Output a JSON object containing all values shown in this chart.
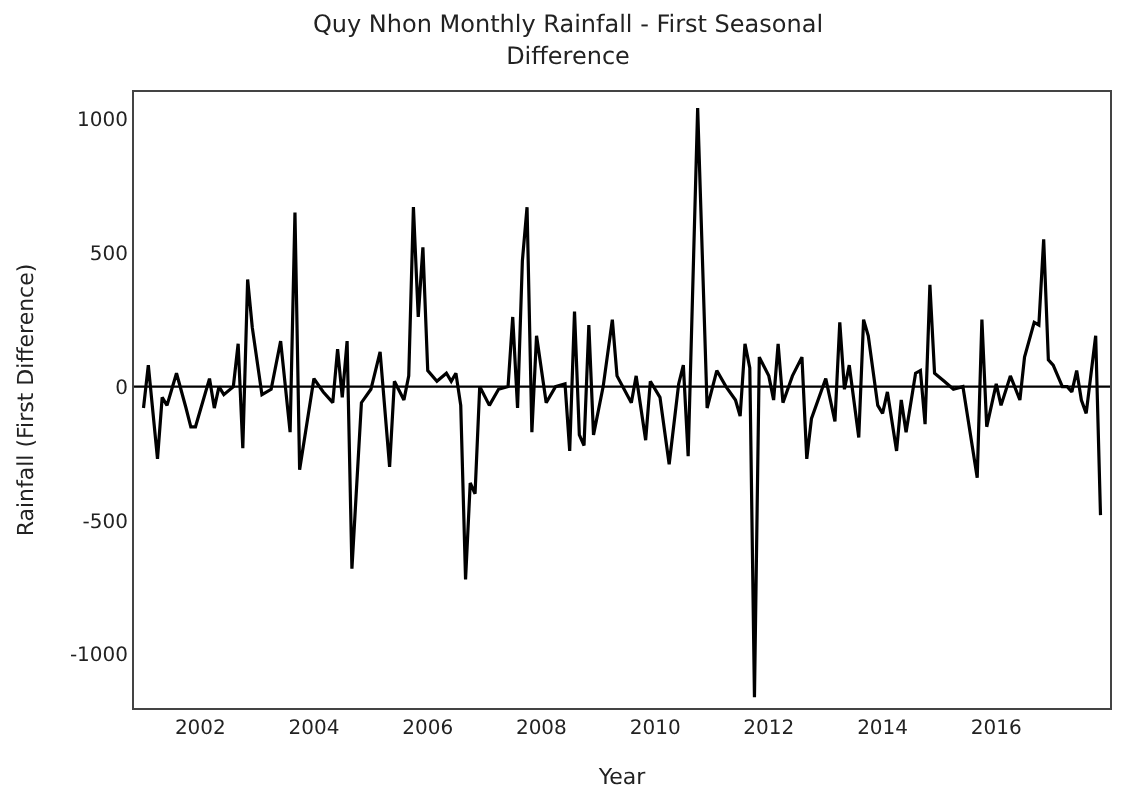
{
  "chart_data": {
    "type": "line",
    "title": "Quy Nhon Monthly Rainfall - First Seasonal Difference",
    "xlabel": "Year",
    "ylabel": "Rainfall (First Difference)",
    "x": [
      "2001-01",
      "2001-02",
      "2001-04",
      "2001-05",
      "2001-06",
      "2001-08",
      "2001-10",
      "2001-11",
      "2001-12",
      "2002-03",
      "2002-04",
      "2002-05",
      "2002-06",
      "2002-08",
      "2002-09",
      "2002-10",
      "2002-11",
      "2002-12",
      "2003-02",
      "2003-04",
      "2003-06",
      "2003-08",
      "2003-09",
      "2003-10",
      "2004-01",
      "2004-03",
      "2004-05",
      "2004-06",
      "2004-07",
      "2004-08",
      "2004-09",
      "2004-11",
      "2005-01",
      "2005-03",
      "2005-05",
      "2005-06",
      "2005-08",
      "2005-09",
      "2005-10",
      "2005-11",
      "2005-12",
      "2006-01",
      "2006-03",
      "2006-05",
      "2006-06",
      "2006-07",
      "2006-08",
      "2006-09",
      "2006-10",
      "2006-11",
      "2006-12",
      "2007-02",
      "2007-04",
      "2007-06",
      "2007-07",
      "2007-08",
      "2007-09",
      "2007-10",
      "2007-11",
      "2007-12",
      "2008-02",
      "2008-04",
      "2008-06",
      "2008-07",
      "2008-08",
      "2008-09",
      "2008-10",
      "2008-11",
      "2008-12",
      "2009-02",
      "2009-04",
      "2009-05",
      "2009-08",
      "2009-09",
      "2009-11",
      "2009-12",
      "2010-02",
      "2010-04",
      "2010-06",
      "2010-07",
      "2010-08",
      "2010-10",
      "2010-12",
      "2011-02",
      "2011-04",
      "2011-06",
      "2011-07",
      "2011-08",
      "2011-09",
      "2011-10",
      "2011-11",
      "2012-01",
      "2012-02",
      "2012-03",
      "2012-04",
      "2012-06",
      "2012-08",
      "2012-09",
      "2012-10",
      "2013-01",
      "2013-03",
      "2013-04",
      "2013-05",
      "2013-06",
      "2013-08",
      "2013-09",
      "2013-10",
      "2013-12",
      "2014-01",
      "2014-02",
      "2014-04",
      "2014-05",
      "2014-06",
      "2014-08",
      "2014-09",
      "2014-10",
      "2014-11",
      "2014-12",
      "2015-02",
      "2015-04",
      "2015-06",
      "2015-09",
      "2015-10",
      "2015-11",
      "2016-01",
      "2016-02",
      "2016-04",
      "2016-06",
      "2016-07",
      "2016-09",
      "2016-10",
      "2016-11",
      "2016-12",
      "2017-01",
      "2017-03",
      "2017-04",
      "2017-05",
      "2017-06",
      "2017-07",
      "2017-08",
      "2017-10",
      "2017-11"
    ],
    "series": [
      {
        "color": "#000000",
        "values": [
          -80,
          80,
          -270,
          -40,
          -70,
          50,
          -80,
          -150,
          -150,
          30,
          -80,
          0,
          -30,
          0,
          160,
          -230,
          400,
          220,
          -30,
          -10,
          170,
          -170,
          650,
          -310,
          30,
          -20,
          -60,
          140,
          -40,
          170,
          -680,
          -60,
          -10,
          130,
          -300,
          20,
          -50,
          40,
          670,
          260,
          520,
          60,
          20,
          50,
          20,
          50,
          -70,
          -720,
          -360,
          -400,
          0,
          -70,
          -10,
          0,
          260,
          -80,
          470,
          670,
          -170,
          190,
          -60,
          0,
          10,
          -240,
          280,
          -180,
          -220,
          230,
          -180,
          0,
          250,
          40,
          -60,
          40,
          -200,
          20,
          -40,
          -290,
          10,
          80,
          -260,
          1040,
          -80,
          60,
          0,
          -50,
          -110,
          160,
          70,
          -1160,
          110,
          40,
          -50,
          160,
          -60,
          40,
          110,
          -270,
          -120,
          30,
          -130,
          240,
          -10,
          80,
          -190,
          250,
          190,
          -70,
          -100,
          -20,
          -240,
          -50,
          -170,
          50,
          60,
          -140,
          380,
          50,
          20,
          -10,
          0,
          -340,
          250,
          -150,
          10,
          -70,
          40,
          -50,
          110,
          240,
          230,
          550,
          100,
          80,
          0,
          0,
          -20,
          60,
          -50,
          -100,
          190,
          -480
        ]
      }
    ],
    "xlim": [
      "2000-11-01",
      "2018-01-01"
    ],
    "xticks": [
      {
        "value": "2002-01-01",
        "label": "2002"
      },
      {
        "value": "2004-01-01",
        "label": "2004"
      },
      {
        "value": "2006-01-01",
        "label": "2006"
      },
      {
        "value": "2008-01-01",
        "label": "2008"
      },
      {
        "value": "2010-01-01",
        "label": "2010"
      },
      {
        "value": "2012-01-01",
        "label": "2012"
      },
      {
        "value": "2014-01-01",
        "label": "2014"
      },
      {
        "value": "2016-01-01",
        "label": "2016"
      }
    ],
    "ylim": [
      -1200,
      1100
    ],
    "yticks": [
      -1000,
      -500,
      0,
      500,
      1000
    ],
    "ref_lines": [
      {
        "axis": "y",
        "value": 0,
        "color": "#000000"
      }
    ],
    "marker": "none",
    "line_style": "solid"
  }
}
